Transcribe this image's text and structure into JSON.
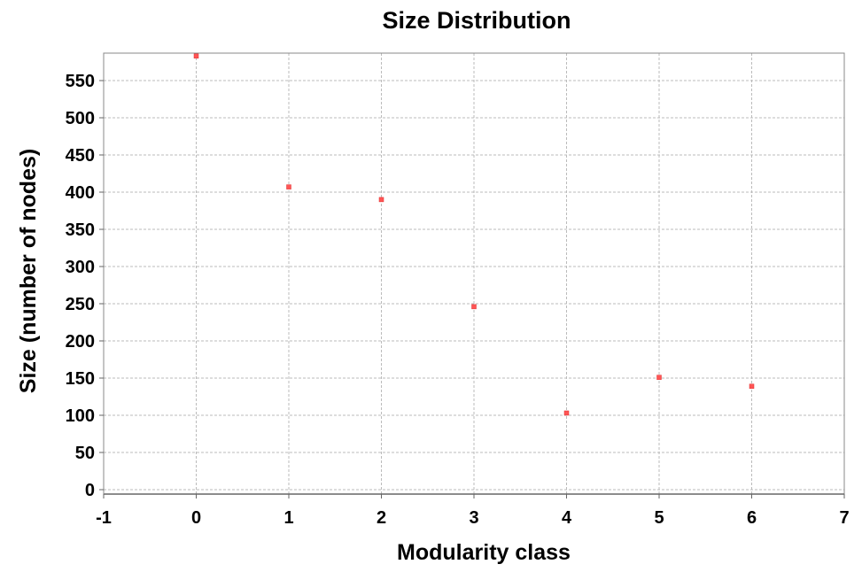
{
  "chart_data": {
    "type": "scatter",
    "title": "Size Distribution",
    "xlabel": "Modularity class",
    "ylabel": "Size (number of nodes)",
    "x_ticks": [
      -1,
      0,
      1,
      2,
      3,
      4,
      5,
      6,
      7
    ],
    "y_ticks": [
      0,
      50,
      100,
      150,
      200,
      250,
      300,
      350,
      400,
      450,
      500,
      550
    ],
    "xlim": [
      -1,
      7
    ],
    "ylim": [
      0,
      585
    ],
    "grid": true,
    "legend": "none",
    "marker_color": "#ff5555",
    "series": [
      {
        "x": [
          0,
          1,
          2,
          3,
          4,
          5,
          6
        ],
        "y": [
          583,
          407,
          390,
          246,
          103,
          151,
          139
        ]
      }
    ]
  }
}
